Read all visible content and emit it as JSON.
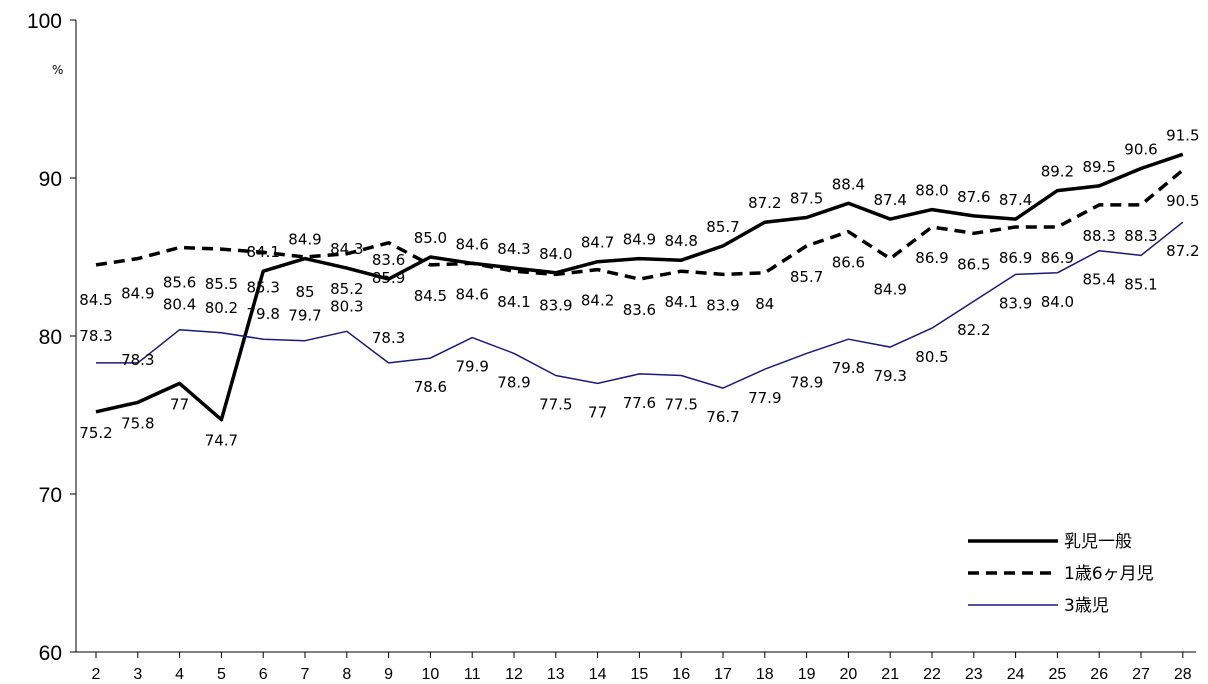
{
  "chart_data": {
    "type": "line",
    "title": "",
    "xlabel": "",
    "ylabel": "",
    "unit": "%",
    "ylim": [
      60,
      100
    ],
    "yticks": [
      60,
      70,
      80,
      90,
      100
    ],
    "grid": false,
    "legend_position": "bottom-right",
    "categories": [
      "2",
      "3",
      "4",
      "5",
      "6",
      "7",
      "8",
      "9",
      "10",
      "11",
      "12",
      "13",
      "14",
      "15",
      "16",
      "17",
      "18",
      "19",
      "20",
      "21",
      "22",
      "23",
      "24",
      "25",
      "26",
      "27",
      "28"
    ],
    "series": [
      {
        "name": "乳児一般",
        "style": "thick-solid",
        "color": "#000000",
        "values": [
          75.2,
          75.8,
          77,
          74.7,
          84.1,
          84.9,
          84.3,
          83.6,
          85.0,
          84.6,
          84.3,
          84.0,
          84.7,
          84.9,
          84.8,
          85.7,
          87.2,
          87.5,
          88.4,
          87.4,
          88.0,
          87.6,
          87.4,
          89.2,
          89.5,
          90.6,
          91.5
        ],
        "labels": [
          "75.2",
          "75.8",
          "77",
          "74.7",
          "84.1",
          "84.9",
          "84.3",
          "83.6",
          "85.0",
          "84.6",
          "84.3",
          "84.0",
          "84.7",
          "84.9",
          "84.8",
          "85.7",
          "87.2",
          "87.5",
          "88.4",
          "87.4",
          "88.0",
          "87.6",
          "87.4",
          "89.2",
          "89.5",
          "90.6",
          "91.5"
        ]
      },
      {
        "name": "1歳6ヶ月児",
        "style": "thick-dashed",
        "color": "#000000",
        "values": [
          84.5,
          84.9,
          85.6,
          85.5,
          85.3,
          85,
          85.2,
          85.9,
          84.5,
          84.6,
          84.1,
          83.9,
          84.2,
          83.6,
          84.1,
          83.9,
          84,
          85.7,
          86.6,
          84.9,
          86.9,
          86.5,
          86.9,
          86.9,
          88.3,
          88.3,
          90.5
        ],
        "labels": [
          "84.5",
          "84.9",
          "85.6",
          "85.5",
          "85.3",
          "85",
          "85.2",
          "85.9",
          "84.5",
          "84.6",
          "84.1",
          "83.9",
          "84.2",
          "83.6",
          "84.1",
          "83.9",
          "84",
          "85.7",
          "86.6",
          "84.9",
          "86.9",
          "86.5",
          "86.9",
          "86.9",
          "88.3",
          "88.3",
          "90.5"
        ]
      },
      {
        "name": "3歳児",
        "style": "thin-solid",
        "color": "#1a1a7a",
        "values": [
          78.3,
          78.3,
          80.4,
          80.2,
          79.8,
          79.7,
          80.3,
          78.3,
          78.6,
          79.9,
          78.9,
          77.5,
          77,
          77.6,
          77.5,
          76.7,
          77.9,
          78.9,
          79.8,
          79.3,
          80.5,
          82.2,
          83.9,
          84.0,
          85.4,
          85.1,
          87.2
        ],
        "labels": [
          "78.3",
          "78.3",
          "80.4",
          "80.2",
          "79.8",
          "79.7",
          "80.3",
          "78.3",
          "78.6",
          "79.9",
          "78.9",
          "77.5",
          "77",
          "77.6",
          "77.5",
          "76.7",
          "77.9",
          "78.9",
          "79.8",
          "79.3",
          "80.5",
          "82.2",
          "83.9",
          "84.0",
          "85.4",
          "85.1",
          "87.2"
        ]
      }
    ]
  }
}
